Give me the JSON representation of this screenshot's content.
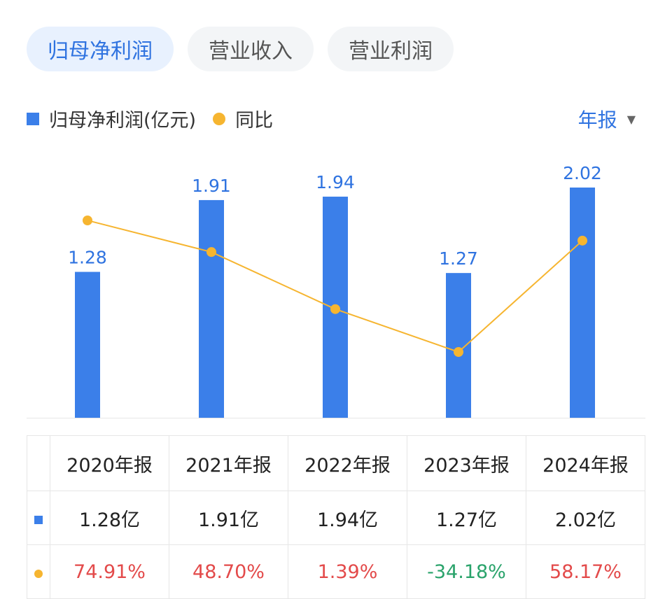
{
  "tabs": [
    {
      "label": "归母净利润",
      "active": true
    },
    {
      "label": "营业收入",
      "active": false
    },
    {
      "label": "营业利润",
      "active": false
    }
  ],
  "legend": {
    "bar_label": "归母净利润(亿元)",
    "line_label": "同比"
  },
  "period_select": {
    "value": "年报"
  },
  "colors": {
    "bar": "#3b7fe9",
    "line": "#f6b530",
    "accent": "#2f73e0",
    "positive": "#e34a4a",
    "negative": "#2aa36b"
  },
  "chart_data": {
    "type": "bar",
    "categories": [
      "2020年报",
      "2021年报",
      "2022年报",
      "2023年报",
      "2024年报"
    ],
    "series": [
      {
        "name": "归母净利润(亿元)",
        "type": "bar",
        "values": [
          1.28,
          1.91,
          1.94,
          1.27,
          2.02
        ],
        "labels": [
          "1.28",
          "1.91",
          "1.94",
          "1.27",
          "2.02"
        ]
      },
      {
        "name": "同比",
        "type": "line",
        "values": [
          74.91,
          48.7,
          1.39,
          -34.18,
          58.17
        ]
      }
    ],
    "bar_ylim": [
      0,
      2.02
    ],
    "line_ylim": [
      -34.18,
      74.91
    ],
    "legend_position": "top-left"
  },
  "table": {
    "headers": [
      "2020年报",
      "2021年报",
      "2022年报",
      "2023年报",
      "2024年报"
    ],
    "profit_row": [
      "1.28亿",
      "1.91亿",
      "1.94亿",
      "1.27亿",
      "2.02亿"
    ],
    "yoy_row": [
      "74.91%",
      "48.70%",
      "1.39%",
      "-34.18%",
      "58.17%"
    ]
  }
}
